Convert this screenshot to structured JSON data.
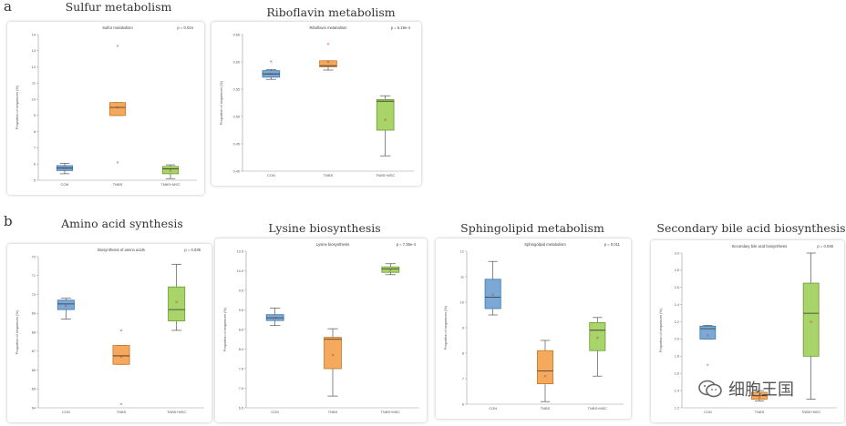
{
  "figure": {
    "label_a": "a",
    "label_b": "b",
    "watermark_text": "细胞王国"
  },
  "colors": {
    "CON": "#7ba9d6",
    "TNBS": "#f5a95c",
    "TNBS+MSC": "#a8d46a",
    "CON_edge": "#3f77ad",
    "TNBS_edge": "#c77822",
    "TNBS+MSC_edge": "#6a9a32"
  },
  "chart_data": [
    {
      "type": "box",
      "title": "Sulfur metabolism",
      "subtitle": "Sulfur metabolism",
      "ylabel": "Proportion of sequences (%)",
      "p_value": "p = 0.024",
      "categories": [
        "CON",
        "TNBS",
        "TNBS+MSC"
      ],
      "ylim": [
        5,
        14
      ],
      "yticks": [
        "5",
        "6",
        "7",
        "8",
        "9",
        "10",
        "11",
        "12",
        "13",
        "14"
      ],
      "boxes": [
        {
          "group": "CON",
          "min": 5.4,
          "q1": 5.6,
          "median": 5.75,
          "q3": 5.9,
          "max": 6.05,
          "mean": 5.75,
          "outliers": []
        },
        {
          "group": "TNBS",
          "min": 9.0,
          "q1": 9.0,
          "median": 9.5,
          "q3": 9.8,
          "max": 9.8,
          "mean": 9.5,
          "outliers": [
            6.1,
            13.3
          ]
        },
        {
          "group": "TNBS+MSC",
          "min": 5.1,
          "q1": 5.4,
          "median": 5.7,
          "q3": 5.85,
          "max": 5.95,
          "mean": 5.6,
          "outliers": []
        }
      ]
    },
    {
      "type": "box",
      "title": "Riboflavin metabolism",
      "subtitle": "Riboflavin metabolism",
      "ylabel": "Proportion of sequences (%)",
      "p_value": "p = 5.19e-4",
      "categories": [
        "CON",
        "TNBS",
        "TNBS+MSC"
      ],
      "ylim": [
        0.4,
        0.65
      ],
      "yticks": [
        "0.40",
        "0.45",
        "0.50",
        "0.55",
        "0.60",
        "0.65"
      ],
      "boxes": [
        {
          "group": "CON",
          "min": 0.568,
          "q1": 0.572,
          "median": 0.578,
          "q3": 0.584,
          "max": 0.586,
          "mean": 0.578,
          "outliers": [
            0.601
          ]
        },
        {
          "group": "TNBS",
          "min": 0.585,
          "q1": 0.591,
          "median": 0.593,
          "q3": 0.602,
          "max": 0.602,
          "mean": 0.6,
          "outliers": [
            0.633
          ]
        },
        {
          "group": "TNBS+MSC",
          "min": 0.428,
          "q1": 0.475,
          "median": 0.528,
          "q3": 0.531,
          "max": 0.538,
          "mean": 0.494,
          "outliers": []
        }
      ]
    },
    {
      "type": "box",
      "title": "Amino acid synthesis",
      "subtitle": "Biosynthesis of amino acids",
      "ylabel": "Proportion of sequences (%)",
      "p_value": "p = 0.035",
      "categories": [
        "CON",
        "TNBS",
        "TNBS+MSC"
      ],
      "ylim": [
        64,
        72
      ],
      "yticks": [
        "64",
        "65",
        "66",
        "67",
        "68",
        "69",
        "70",
        "71",
        "72"
      ],
      "boxes": [
        {
          "group": "CON",
          "min": 68.7,
          "q1": 69.2,
          "median": 69.5,
          "q3": 69.7,
          "max": 69.8,
          "mean": 69.4,
          "outliers": []
        },
        {
          "group": "TNBS",
          "min": 66.3,
          "q1": 66.3,
          "median": 66.75,
          "q3": 67.3,
          "max": 67.3,
          "mean": 66.7,
          "outliers": [
            68.1,
            64.2
          ]
        },
        {
          "group": "TNBS+MSC",
          "min": 68.1,
          "q1": 68.6,
          "median": 69.2,
          "q3": 70.4,
          "max": 71.6,
          "mean": 69.6,
          "outliers": []
        }
      ]
    },
    {
      "type": "box",
      "title": "Lysine biosynthesis",
      "subtitle": "Lysine biosynthesis",
      "ylabel": "Proportion of sequences (%)",
      "p_value": "p = 7.35e-4",
      "categories": [
        "CON",
        "TNBS",
        "TNBS+MSC"
      ],
      "ylim": [
        6.5,
        10.5
      ],
      "yticks": [
        "6.5",
        "7.0",
        "7.5",
        "8.0",
        "8.5",
        "9.0",
        "9.5",
        "10.0",
        "10.5"
      ],
      "boxes": [
        {
          "group": "CON",
          "min": 8.6,
          "q1": 8.73,
          "median": 8.8,
          "q3": 8.88,
          "max": 9.05,
          "mean": 8.8,
          "outliers": []
        },
        {
          "group": "TNBS",
          "min": 6.8,
          "q1": 7.5,
          "median": 8.25,
          "q3": 8.3,
          "max": 8.52,
          "mean": 7.85,
          "outliers": []
        },
        {
          "group": "TNBS+MSC",
          "min": 9.9,
          "q1": 9.96,
          "median": 10.05,
          "q3": 10.1,
          "max": 10.18,
          "mean": 10.02,
          "outliers": []
        }
      ]
    },
    {
      "type": "box",
      "title": "Sphingolipid metabolism",
      "subtitle": "Sphingolipid metabolism",
      "ylabel": "Proportion of sequences (%)",
      "p_value": "p = 0.011",
      "categories": [
        "CON",
        "TNBS",
        "TNBS+MSC"
      ],
      "ylim": [
        6,
        12
      ],
      "yticks": [
        "6",
        "7",
        "8",
        "9",
        "10",
        "11",
        "12"
      ],
      "boxes": [
        {
          "group": "CON",
          "min": 9.5,
          "q1": 9.75,
          "median": 10.2,
          "q3": 10.9,
          "max": 11.6,
          "mean": 10.3,
          "outliers": []
        },
        {
          "group": "TNBS",
          "min": 6.1,
          "q1": 6.8,
          "median": 7.3,
          "q3": 8.1,
          "max": 8.5,
          "mean": 7.1,
          "outliers": []
        },
        {
          "group": "TNBS+MSC",
          "min": 7.1,
          "q1": 8.1,
          "median": 8.9,
          "q3": 9.2,
          "max": 9.4,
          "mean": 8.6,
          "outliers": []
        }
      ]
    },
    {
      "type": "box",
      "title": "Secondary bile acid biosynthesis",
      "subtitle": "Secondary bile acid biosynthesis",
      "ylabel": "Proportion of sequences (%)",
      "p_value": "p = 0.046",
      "categories": [
        "CON",
        "TNBS",
        "TNBS+MSC"
      ],
      "ylim": [
        1.2,
        3.0
      ],
      "yticks": [
        "1.2",
        "1.4",
        "1.6",
        "1.8",
        "2.0",
        "2.2",
        "2.4",
        "2.6",
        "2.8",
        "3.0"
      ],
      "boxes": [
        {
          "group": "CON",
          "min": 2.0,
          "q1": 2.0,
          "median": 2.12,
          "q3": 2.15,
          "max": 2.16,
          "mean": 2.04,
          "outliers": [
            1.7
          ]
        },
        {
          "group": "TNBS",
          "min": 1.28,
          "q1": 1.3,
          "median": 1.34,
          "q3": 1.38,
          "max": 1.4,
          "mean": 1.32,
          "outliers": []
        },
        {
          "group": "TNBS+MSC",
          "min": 1.3,
          "q1": 1.8,
          "median": 2.3,
          "q3": 2.65,
          "max": 3.0,
          "mean": 2.2,
          "outliers": []
        }
      ]
    }
  ]
}
